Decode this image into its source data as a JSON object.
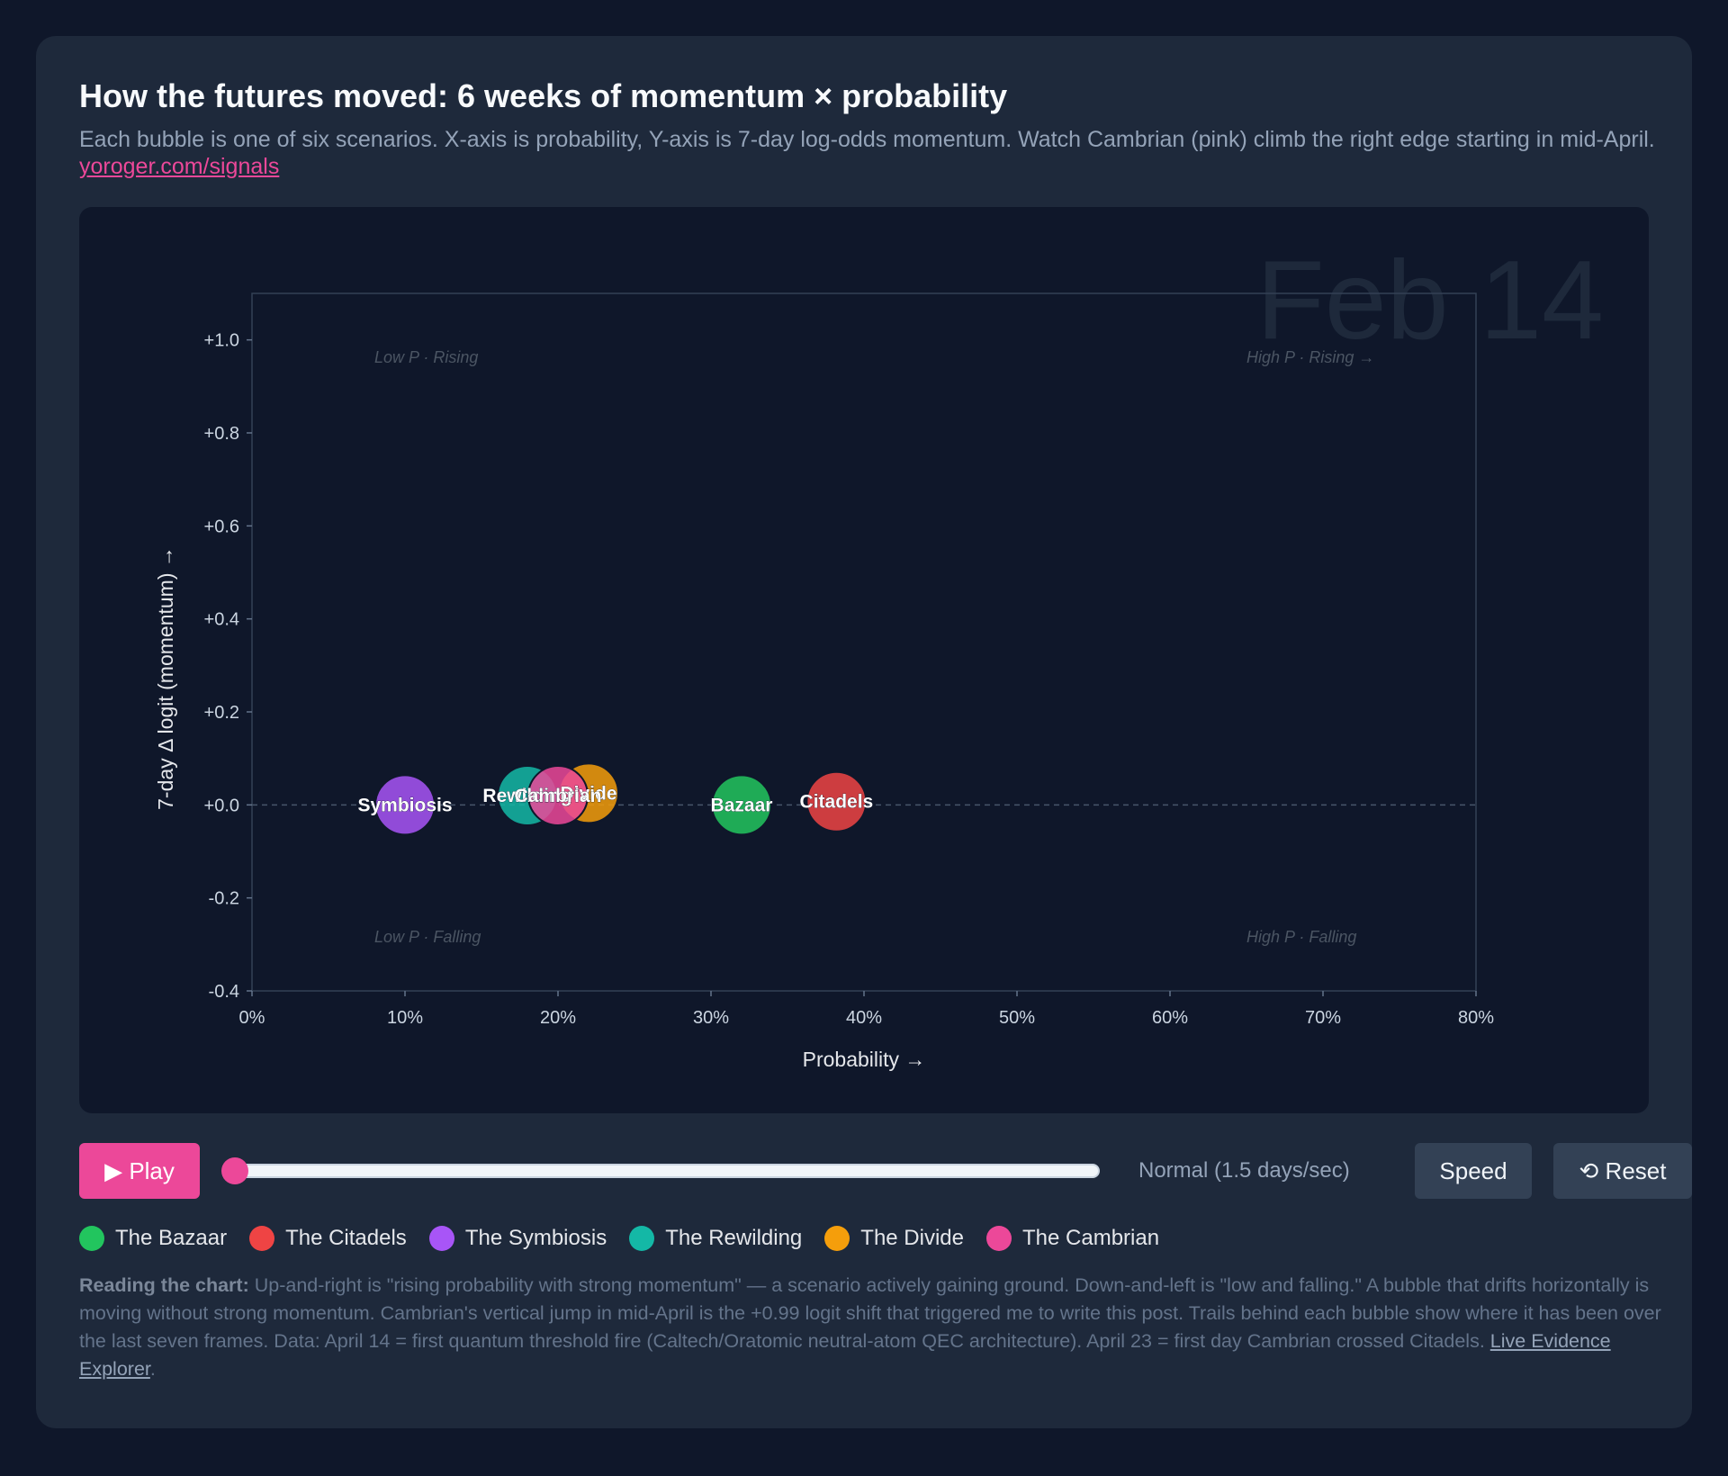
{
  "title": "How the futures moved: 6 weeks of momentum × probability",
  "subtitle": "Each bubble is one of six scenarios. X-axis is probability, Y-axis is 7-day log-odds momentum. Watch Cambrian (pink) climb the right edge starting in mid-April.",
  "subtitle_link": "yoroger.com/signals",
  "controls": {
    "play_label": "▶ Play",
    "timeline_progress": 0,
    "speed_label": "Normal (1.5 days/sec)",
    "speed_button": "Speed",
    "reset_button": "⟲ Reset"
  },
  "legend": [
    {
      "label": "The Bazaar",
      "color": "#22c55e"
    },
    {
      "label": "The Citadels",
      "color": "#ef4444"
    },
    {
      "label": "The Symbiosis",
      "color": "#a855f7"
    },
    {
      "label": "The Rewilding",
      "color": "#14b8a6"
    },
    {
      "label": "The Divide",
      "color": "#f59e0b"
    },
    {
      "label": "The Cambrian",
      "color": "#ec4899"
    }
  ],
  "notes": {
    "lead": "Reading the chart:",
    "body": " Up-and-right is \"rising probability with strong momentum\" — a scenario actively gaining ground. Down-and-left is \"low and falling.\" A bubble that drifts horizontally is moving without strong momentum. Cambrian's vertical jump in mid-April is the +0.99 logit shift that triggered me to write this post. Trails behind each bubble show where it has been over the last seven frames. Data: April 14 = first quantum threshold fire (Caltech/Oratomic neutral-atom QEC architecture). April 23 = first day Cambrian crossed Citadels. ",
    "link": "Live Evidence Explorer",
    "tail": "."
  },
  "chart_data": {
    "type": "scatter",
    "frame_label": "Feb 14",
    "xlabel": "Probability →",
    "ylabel": "7-day Δ logit (momentum) →",
    "xlim": [
      0,
      80
    ],
    "ylim": [
      -0.4,
      1.1
    ],
    "x_ticks": [
      0,
      10,
      20,
      30,
      40,
      50,
      60,
      70,
      80
    ],
    "x_tick_labels": [
      "0%",
      "10%",
      "20%",
      "30%",
      "40%",
      "50%",
      "60%",
      "70%",
      "80%"
    ],
    "y_ticks": [
      1.0,
      0.8,
      0.6,
      0.4,
      0.2,
      0.0,
      -0.2,
      -0.4
    ],
    "y_tick_labels": [
      "+1.0",
      "+0.8",
      "+0.6",
      "+0.4",
      "+0.2",
      "+0.0",
      "-0.2",
      "-0.4"
    ],
    "quadrant_labels": {
      "top_left": "Low P · Rising",
      "top_right": "High P · Rising →",
      "bottom_left": "Low P · Falling",
      "bottom_right": "High P · Falling"
    },
    "points": [
      {
        "name": "Symbiosis",
        "x": 10,
        "y": 0.0,
        "color": "#a855f7"
      },
      {
        "name": "Rewilding",
        "x": 18,
        "y": 0.02,
        "color": "#14b8a6"
      },
      {
        "name": "Divide",
        "x": 22,
        "y": 0.025,
        "color": "#f59e0b"
      },
      {
        "name": "Cambrian",
        "x": 20,
        "y": 0.02,
        "color": "#ec4899"
      },
      {
        "name": "Bazaar",
        "x": 32,
        "y": 0.0,
        "color": "#22c55e"
      },
      {
        "name": "Citadels",
        "x": 38.2,
        "y": 0.007,
        "color": "#ef4444"
      }
    ]
  }
}
